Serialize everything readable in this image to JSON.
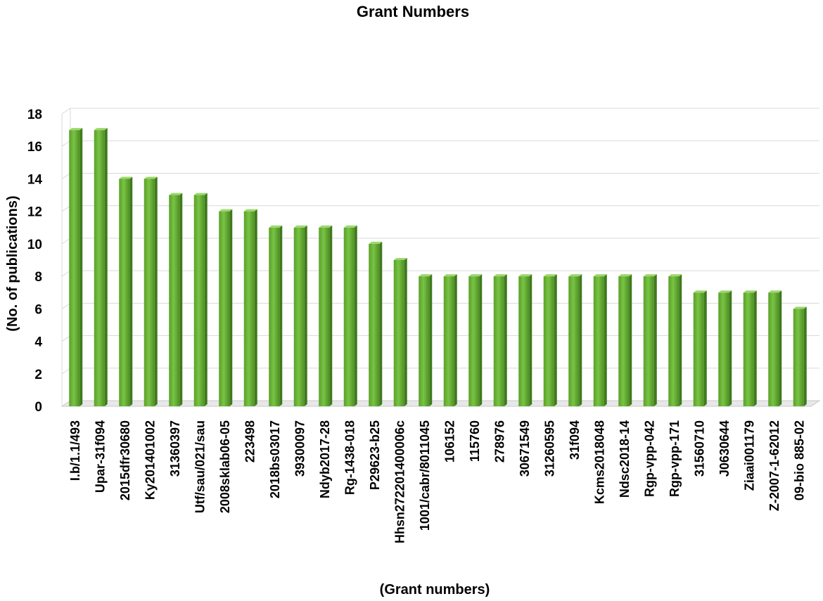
{
  "chart_data": {
    "type": "bar",
    "title": "Grant Numbers",
    "xlabel": "(Grant numbers)",
    "ylabel": "(No. of publications)",
    "ylim": [
      0,
      18
    ],
    "yticks": [
      0,
      2,
      4,
      6,
      8,
      10,
      12,
      14,
      16,
      18
    ],
    "grid": true,
    "legend": "none",
    "bar_color": "#6fb83a",
    "bar_color_dark": "#3f7a1c",
    "categories": [
      "I.b/1.1/493",
      "Upar-31f094",
      "2015dfr30680",
      "Ky201401002",
      "31360397",
      "Utf/sau/021/sau",
      "2008sklab06-05",
      "223498",
      "2018bs03017",
      "39300097",
      "Ndyb2017-28",
      "Rg-1438-018",
      "P29623-b25",
      "Hhsn272201400006c",
      "1001/cabr/8011045",
      "106152",
      "115760",
      "278976",
      "30671549",
      "31260595",
      "31f094",
      "Kcms2018048",
      "Ndsc2018-14",
      "Rgp-vpp-042",
      "Rgp-vpp-171",
      "31560710",
      "J0630644",
      "Ziaai001179",
      "Z-2007-1-62012",
      "09-bio 885-02"
    ],
    "values": [
      17,
      17,
      14,
      14,
      13,
      13,
      12,
      12,
      11,
      11,
      11,
      11,
      10,
      9,
      8,
      8,
      8,
      8,
      8,
      8,
      8,
      8,
      8,
      8,
      8,
      7,
      7,
      7,
      7,
      6
    ]
  }
}
